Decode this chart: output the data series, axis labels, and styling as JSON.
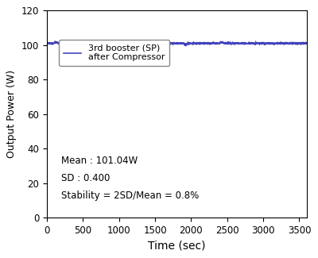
{
  "title": "",
  "xlabel": "Time (sec)",
  "ylabel": "Output Power (W)",
  "xlim": [
    0,
    3600
  ],
  "ylim": [
    0,
    120
  ],
  "xticks": [
    0,
    500,
    1000,
    1500,
    2000,
    2500,
    3000,
    3500
  ],
  "yticks": [
    0,
    20,
    40,
    60,
    80,
    100,
    120
  ],
  "mean": 101.04,
  "sd": 0.4,
  "num_points": 3600,
  "line_color": "#4444bb",
  "line_width": 0.7,
  "legend_label_line1": "3rd booster (SP)",
  "legend_label_line2": "after Compressor",
  "annotation_mean": "Mean : 101.04W",
  "annotation_sd": "SD : 0.400",
  "annotation_stability": "Stability = 2SD/Mean = 0.8%",
  "annotation_fontsize": 8.5,
  "background_color": "#ffffff",
  "seed": 42
}
